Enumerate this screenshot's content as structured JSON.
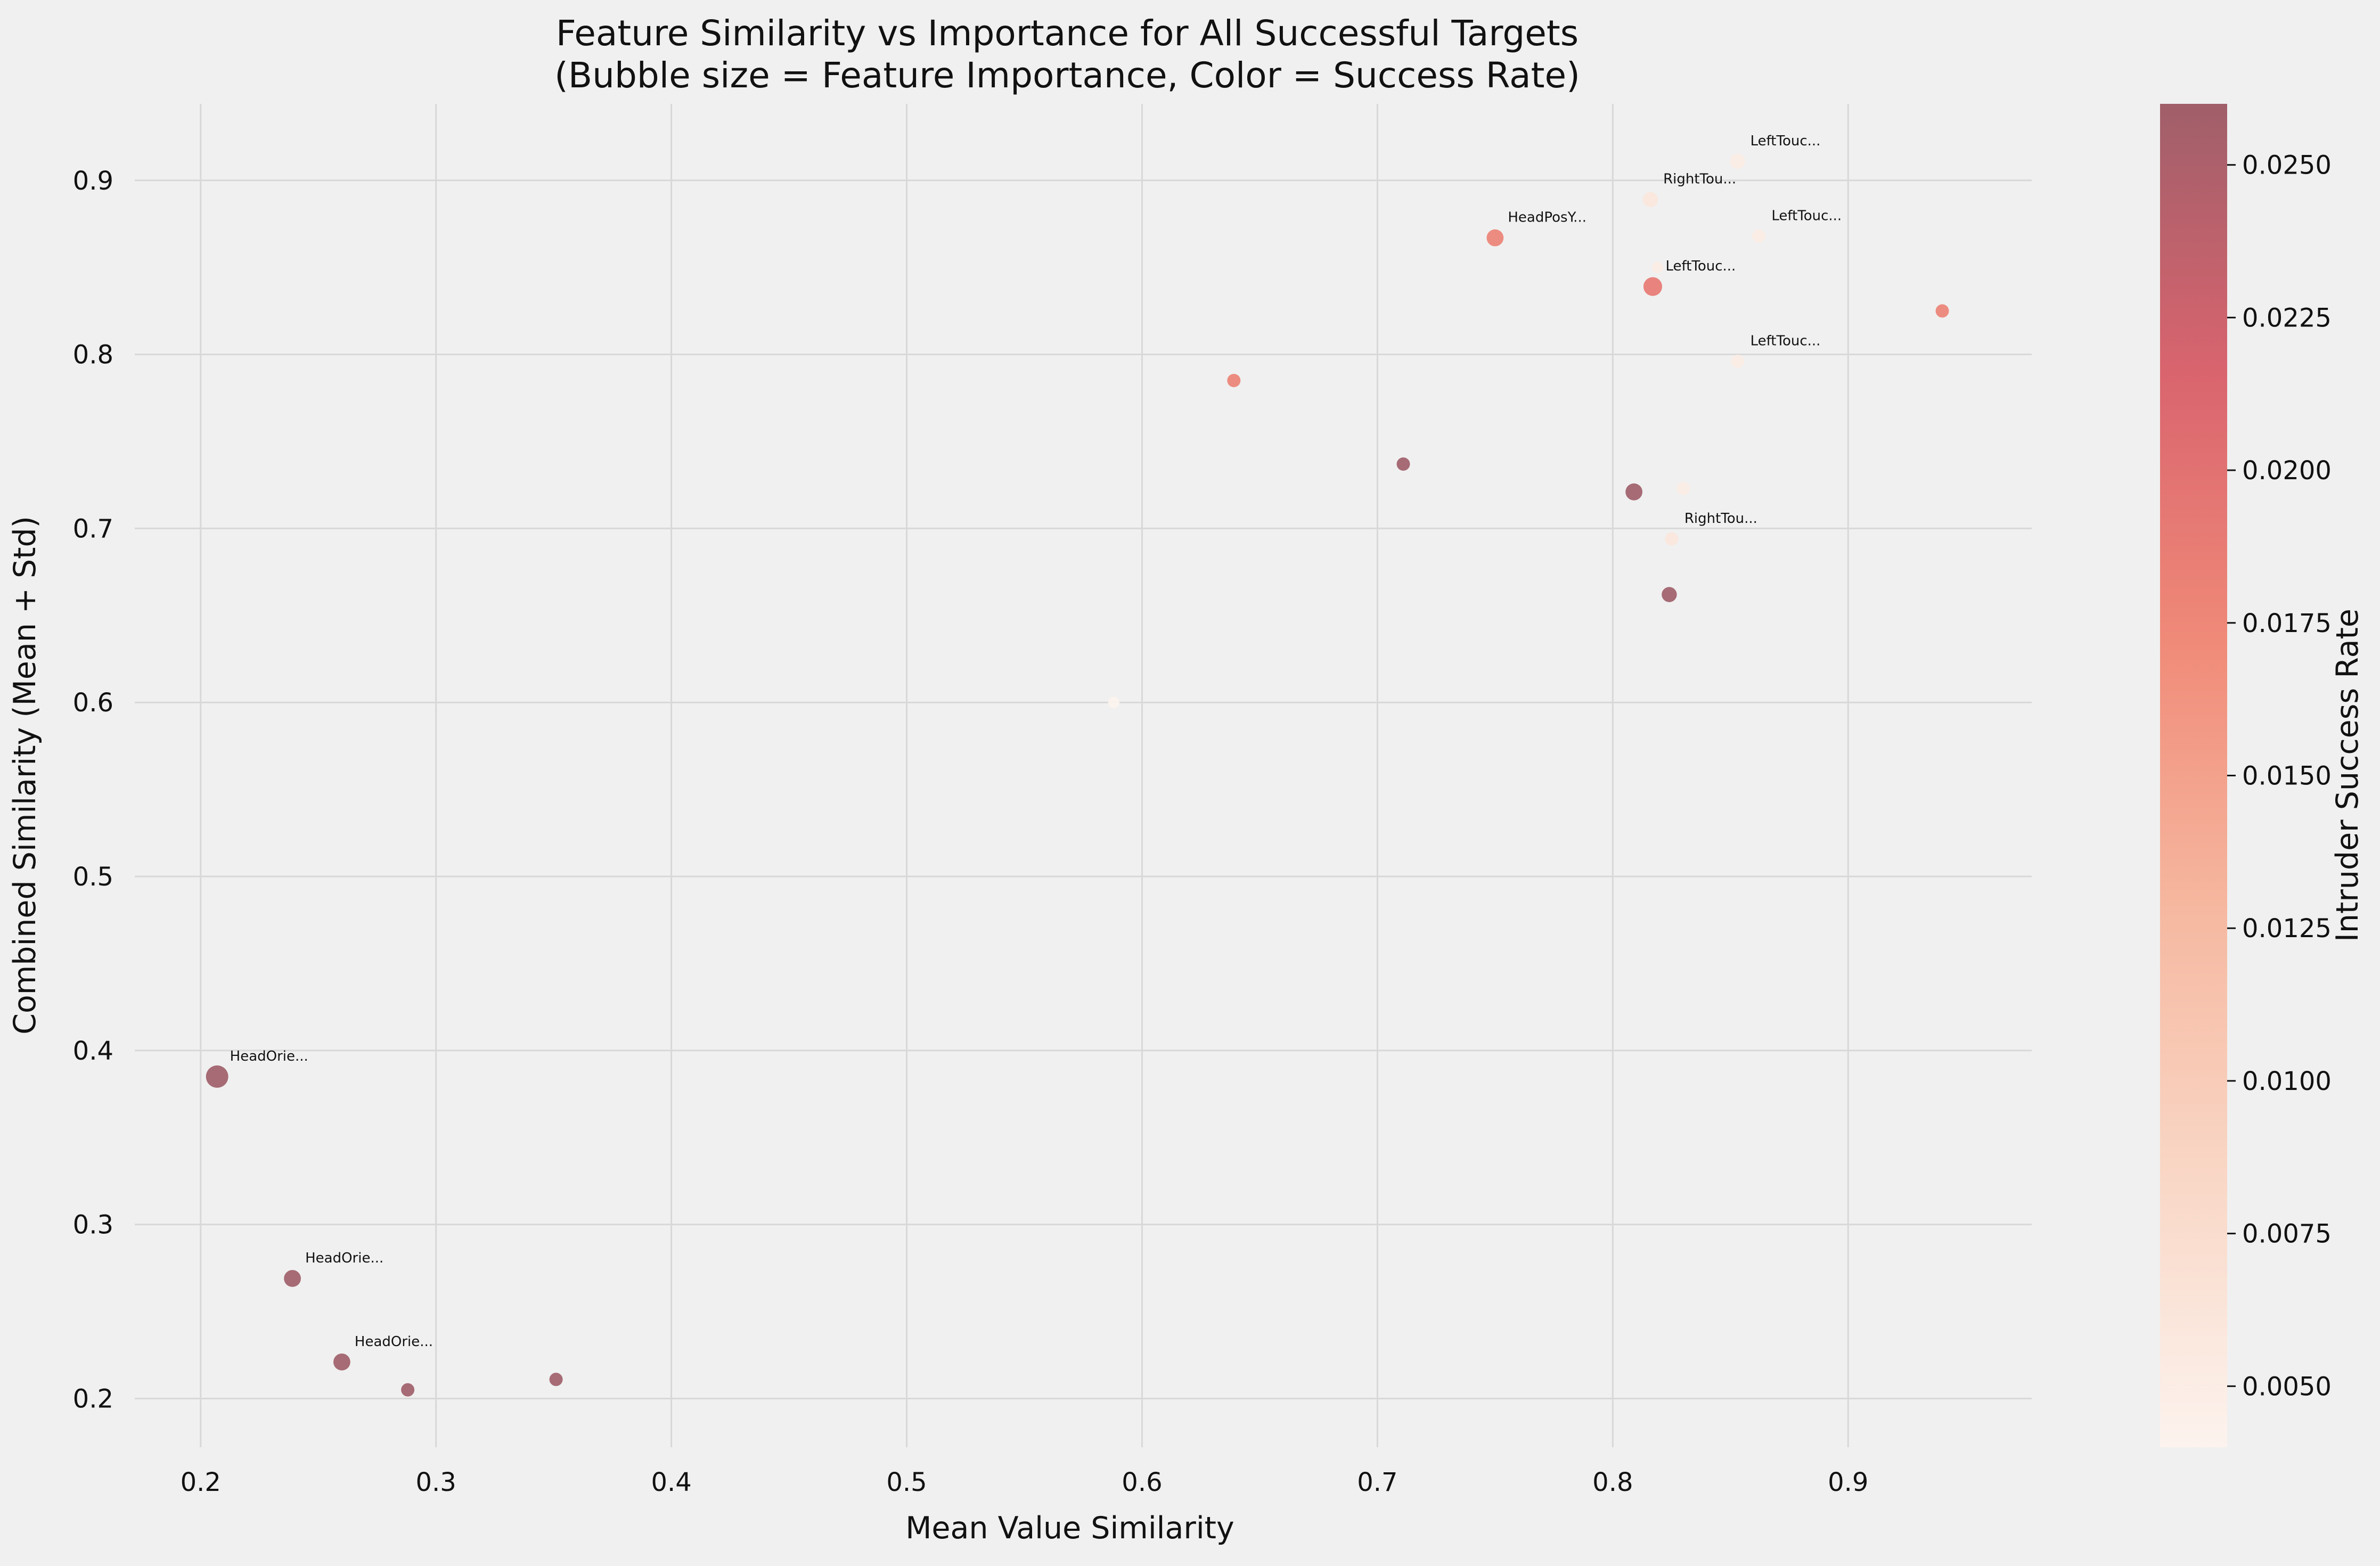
{
  "chart_data": {
    "type": "scatter",
    "title_lines": [
      "Feature Similarity vs Importance for All Successful Targets",
      "(Bubble size = Feature Importance, Color = Success Rate)"
    ],
    "xlabel": "Mean Value Similarity",
    "ylabel": "Combined Similarity (Mean + Std)",
    "xlim": [
      0.172,
      0.978
    ],
    "ylim": [
      0.172,
      0.944
    ],
    "xticks": [
      0.2,
      0.3,
      0.4,
      0.5,
      0.6,
      0.7,
      0.8,
      0.9
    ],
    "xtick_labels": [
      "0.2",
      "0.3",
      "0.4",
      "0.5",
      "0.6",
      "0.7",
      "0.8",
      "0.9"
    ],
    "yticks": [
      0.2,
      0.3,
      0.4,
      0.5,
      0.6,
      0.7,
      0.8,
      0.9
    ],
    "ytick_labels": [
      "0.2",
      "0.3",
      "0.4",
      "0.5",
      "0.6",
      "0.7",
      "0.8",
      "0.9"
    ],
    "grid": true,
    "colorbar": {
      "label": "Intruder Success Rate",
      "range": [
        0.004,
        0.026
      ],
      "ticks": [
        0.005,
        0.0075,
        0.01,
        0.0125,
        0.015,
        0.0175,
        0.02,
        0.0225,
        0.025
      ],
      "tick_labels": [
        "0.0050",
        "0.0075",
        "0.0100",
        "0.0125",
        "0.0150",
        "0.0175",
        "0.0200",
        "0.0225",
        "0.0250"
      ],
      "colors": [
        "#fcf3ee",
        "#f9d7c6",
        "#f6b8a0",
        "#f08a78",
        "#d9646e",
        "#a05f6a"
      ]
    },
    "points": [
      {
        "x": 0.207,
        "y": 0.385,
        "size": 10,
        "rate": 0.026,
        "label": "HeadOrie..."
      },
      {
        "x": 0.239,
        "y": 0.269,
        "size": 7,
        "rate": 0.026,
        "label": "HeadOrie..."
      },
      {
        "x": 0.26,
        "y": 0.221,
        "size": 7,
        "rate": 0.026,
        "label": "HeadOrie..."
      },
      {
        "x": 0.288,
        "y": 0.205,
        "size": 5,
        "rate": 0.026,
        "label": ""
      },
      {
        "x": 0.351,
        "y": 0.211,
        "size": 5,
        "rate": 0.026,
        "label": ""
      },
      {
        "x": 0.588,
        "y": 0.6,
        "size": 4,
        "rate": 0.004,
        "label": ""
      },
      {
        "x": 0.639,
        "y": 0.785,
        "size": 5,
        "rate": 0.018,
        "label": ""
      },
      {
        "x": 0.711,
        "y": 0.737,
        "size": 5,
        "rate": 0.026,
        "label": ""
      },
      {
        "x": 0.75,
        "y": 0.867,
        "size": 7,
        "rate": 0.018,
        "label": "HeadPosY..."
      },
      {
        "x": 0.809,
        "y": 0.721,
        "size": 7,
        "rate": 0.026,
        "label": ""
      },
      {
        "x": 0.816,
        "y": 0.889,
        "size": 6,
        "rate": 0.006,
        "label": "RightTou..."
      },
      {
        "x": 0.817,
        "y": 0.839,
        "size": 8,
        "rate": 0.019,
        "label": "LeftTouc..."
      },
      {
        "x": 0.819,
        "y": 0.85,
        "size": 4,
        "rate": 0.005,
        "label": ""
      },
      {
        "x": 0.824,
        "y": 0.662,
        "size": 6,
        "rate": 0.026,
        "label": ""
      },
      {
        "x": 0.825,
        "y": 0.694,
        "size": 5,
        "rate": 0.006,
        "label": "RightTou..."
      },
      {
        "x": 0.83,
        "y": 0.723,
        "size": 5,
        "rate": 0.005,
        "label": ""
      },
      {
        "x": 0.853,
        "y": 0.796,
        "size": 5,
        "rate": 0.005,
        "label": "LeftTouc..."
      },
      {
        "x": 0.853,
        "y": 0.911,
        "size": 6,
        "rate": 0.005,
        "label": "LeftTouc..."
      },
      {
        "x": 0.862,
        "y": 0.868,
        "size": 5,
        "rate": 0.005,
        "label": "LeftTouc..."
      },
      {
        "x": 0.94,
        "y": 0.825,
        "size": 5,
        "rate": 0.018,
        "label": ""
      }
    ]
  }
}
